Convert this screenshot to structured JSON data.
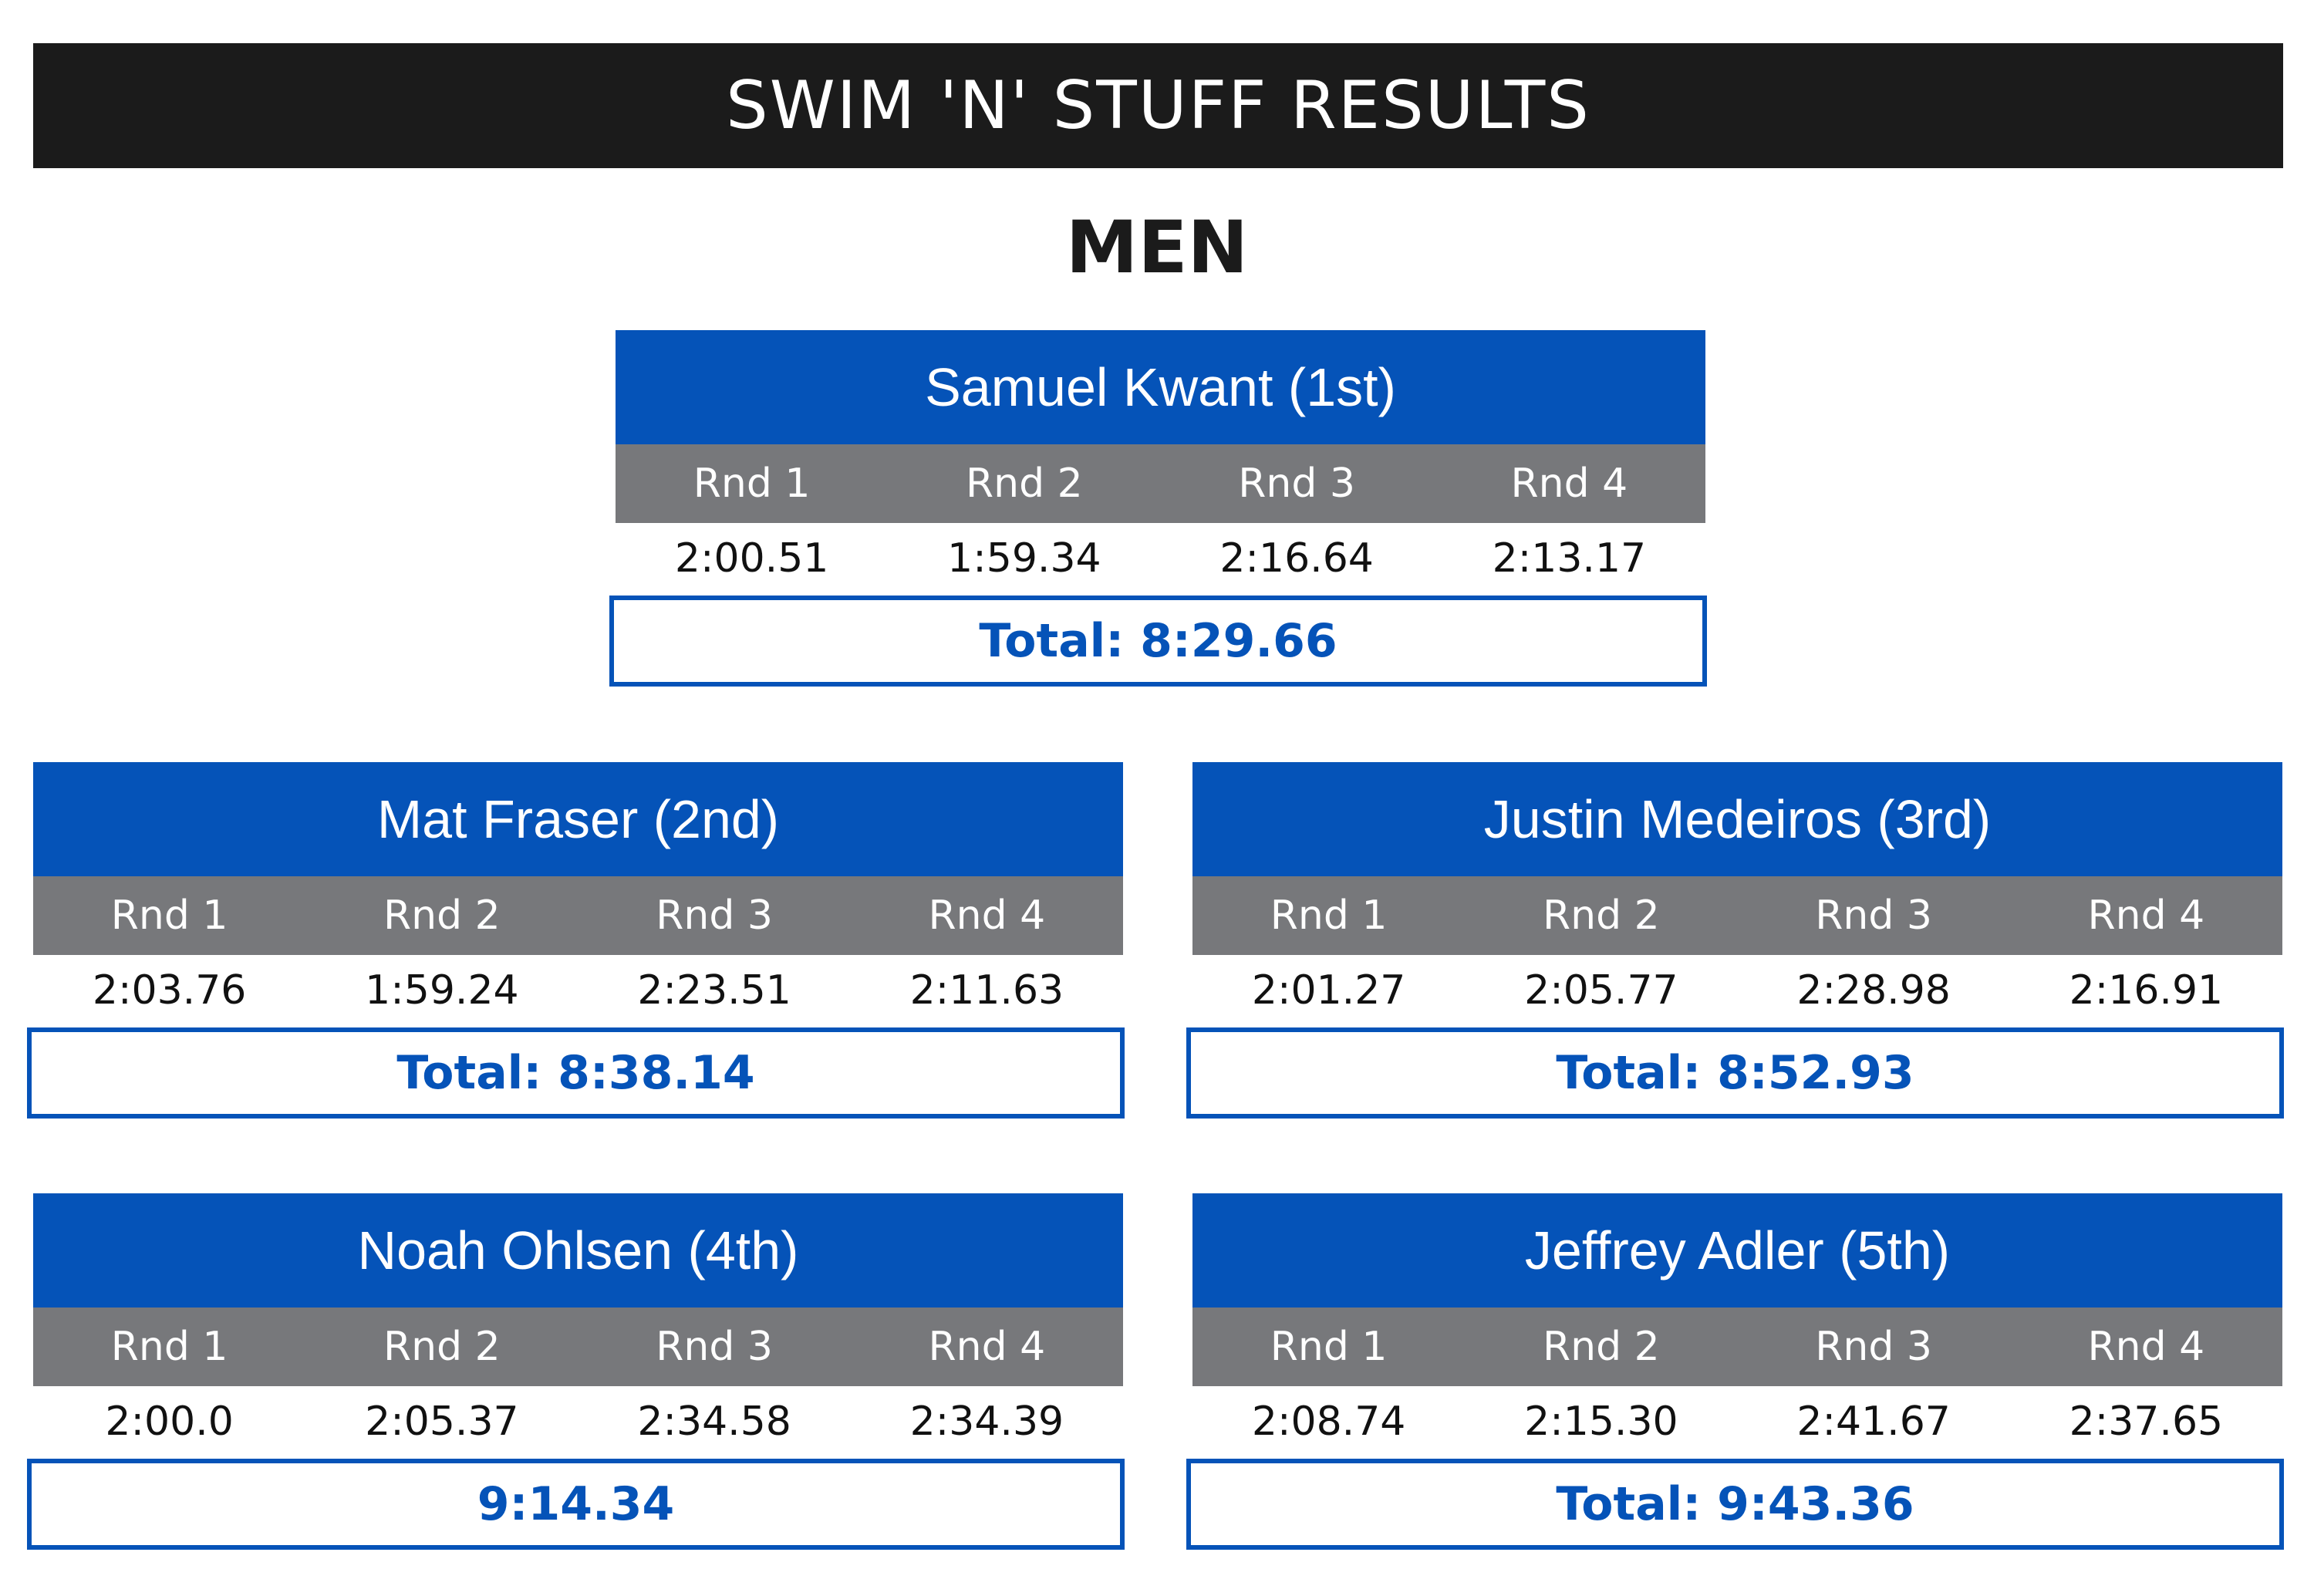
{
  "header": {
    "title": "SWIM 'N' STUFF RESULTS",
    "section": "MEN"
  },
  "colors": {
    "header_bg": "#1b1b1b",
    "card_header_bg": "#0553b8",
    "round_row_bg": "#77787b",
    "total_text": "#0553b8"
  },
  "round_labels": [
    "Rnd 1",
    "Rnd 2",
    "Rnd 3",
    "Rnd 4"
  ],
  "athletes": [
    {
      "name": "Samuel Kwant (1st)",
      "times": [
        "2:00.51",
        "1:59.34",
        "2:16.64",
        "2:13.17"
      ],
      "total": "Total: 8:29.66"
    },
    {
      "name": "Mat Fraser (2nd)",
      "times": [
        "2:03.76",
        "1:59.24",
        "2:23.51",
        "2:11.63"
      ],
      "total": "Total: 8:38.14"
    },
    {
      "name": "Justin Medeiros (3rd)",
      "times": [
        "2:01.27",
        "2:05.77",
        "2:28.98",
        "2:16.91"
      ],
      "total": "Total: 8:52.93"
    },
    {
      "name": "Noah Ohlsen (4th)",
      "times": [
        "2:00.0",
        "2:05.37",
        "2:34.58",
        "2:34.39"
      ],
      "total": "9:14.34"
    },
    {
      "name": "Jeffrey Adler (5th)",
      "times": [
        "2:08.74",
        "2:15.30",
        "2:41.67",
        "2:37.65"
      ],
      "total": "Total: 9:43.36"
    }
  ]
}
